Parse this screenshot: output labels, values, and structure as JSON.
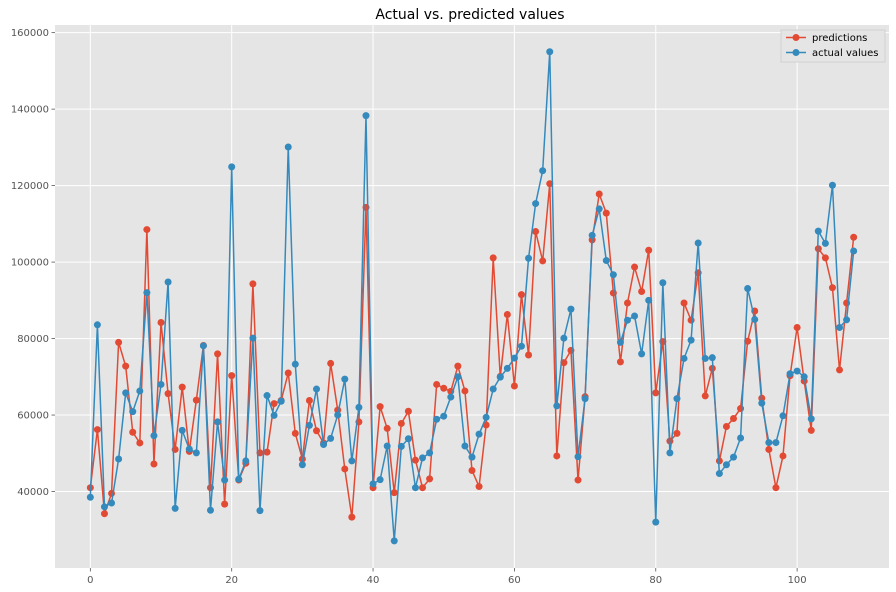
{
  "chart_data": {
    "type": "line",
    "title": "Actual vs. predicted values",
    "xlabel": "",
    "ylabel": "",
    "xlim": [
      -5,
      113
    ],
    "ylim": [
      20000,
      162000
    ],
    "grid": true,
    "legend_position": "top-right",
    "x_ticks": [
      "0",
      "20",
      "40",
      "60",
      "80",
      "100"
    ],
    "y_ticks": [
      "40000",
      "60000",
      "80000",
      "100000",
      "120000",
      "140000",
      "160000"
    ],
    "x": [
      0,
      1,
      2,
      3,
      4,
      5,
      6,
      7,
      8,
      9,
      10,
      11,
      12,
      13,
      14,
      15,
      16,
      17,
      18,
      19,
      20,
      21,
      22,
      23,
      24,
      25,
      26,
      27,
      28,
      29,
      30,
      31,
      32,
      33,
      34,
      35,
      36,
      37,
      38,
      39,
      40,
      41,
      42,
      43,
      44,
      45,
      46,
      47,
      48,
      49,
      50,
      51,
      52,
      53,
      54,
      55,
      56,
      57,
      58,
      59,
      60,
      61,
      62,
      63,
      64,
      65,
      66,
      67,
      68,
      69,
      70,
      71,
      72,
      73,
      74,
      75,
      76,
      77,
      78,
      79,
      80,
      81,
      82,
      83,
      84,
      85,
      86,
      87,
      88,
      89,
      90,
      91,
      92,
      93,
      94,
      95,
      96,
      97,
      98,
      99,
      100,
      101,
      102,
      103,
      104,
      105,
      106,
      107,
      108
    ],
    "series": [
      {
        "name": "predictions",
        "color": "#E24A33",
        "values": [
          41000,
          56200,
          34200,
          39500,
          79000,
          72800,
          55500,
          52700,
          108500,
          47200,
          84200,
          65600,
          51000,
          67300,
          50500,
          63900,
          78200,
          41000,
          76000,
          36700,
          70300,
          43000,
          47400,
          94300,
          50100,
          50300,
          63000,
          63800,
          71000,
          55200,
          48500,
          63800,
          55900,
          52700,
          73500,
          61300,
          45900,
          33300,
          58200,
          114300,
          41000,
          62200,
          56500,
          39700,
          57800,
          61000,
          48200,
          41000,
          43300,
          68000,
          67000,
          66200,
          72800,
          66300,
          45500,
          41300,
          57400,
          101100,
          70100,
          86300,
          67600,
          91500,
          75700,
          108000,
          100300,
          120500,
          49300,
          73700,
          76900,
          43000,
          64800,
          105800,
          117800,
          112800,
          91900,
          73900,
          89300,
          98700,
          92300,
          103100,
          65800,
          79200,
          53200,
          55200,
          89300,
          84800,
          97200,
          65000,
          72200,
          48000,
          57000,
          59100,
          61700,
          79300,
          87200,
          64400,
          51000,
          41000,
          49300,
          70300,
          82900,
          68900,
          56000,
          103500,
          101100,
          93300,
          71800,
          89300,
          106500
        ]
      },
      {
        "name": "actual values",
        "color": "#348ABD",
        "values": [
          38500,
          83600,
          36000,
          37000,
          48500,
          65800,
          60900,
          66300,
          92000,
          54600,
          68000,
          94800,
          35600,
          56000,
          51100,
          50100,
          78100,
          35100,
          58200,
          43000,
          124900,
          43200,
          48000,
          80100,
          35000,
          65100,
          59900,
          63600,
          130100,
          73300,
          47000,
          57300,
          66800,
          52300,
          53900,
          60000,
          69400,
          48000,
          62000,
          138300,
          42000,
          43100,
          51900,
          27100,
          51800,
          53800,
          41000,
          48800,
          50100,
          58900,
          59700,
          64700,
          70000,
          51900,
          49000,
          55000,
          59400,
          66800,
          69900,
          72200,
          74900,
          78000,
          101000,
          115300,
          123900,
          155000,
          62400,
          80100,
          87700,
          49100,
          64300,
          107000,
          113900,
          100400,
          96700,
          79000,
          84800,
          85900,
          76000,
          90000,
          32000,
          94600,
          50100,
          64300,
          74800,
          79600,
          105000,
          74800,
          75000,
          44700,
          47000,
          49000,
          54000,
          93100,
          85000,
          63100,
          52800,
          52800,
          59800,
          70800,
          71500,
          70000,
          59000,
          108100,
          104900,
          120100,
          82900,
          84900,
          102900
        ]
      }
    ]
  }
}
